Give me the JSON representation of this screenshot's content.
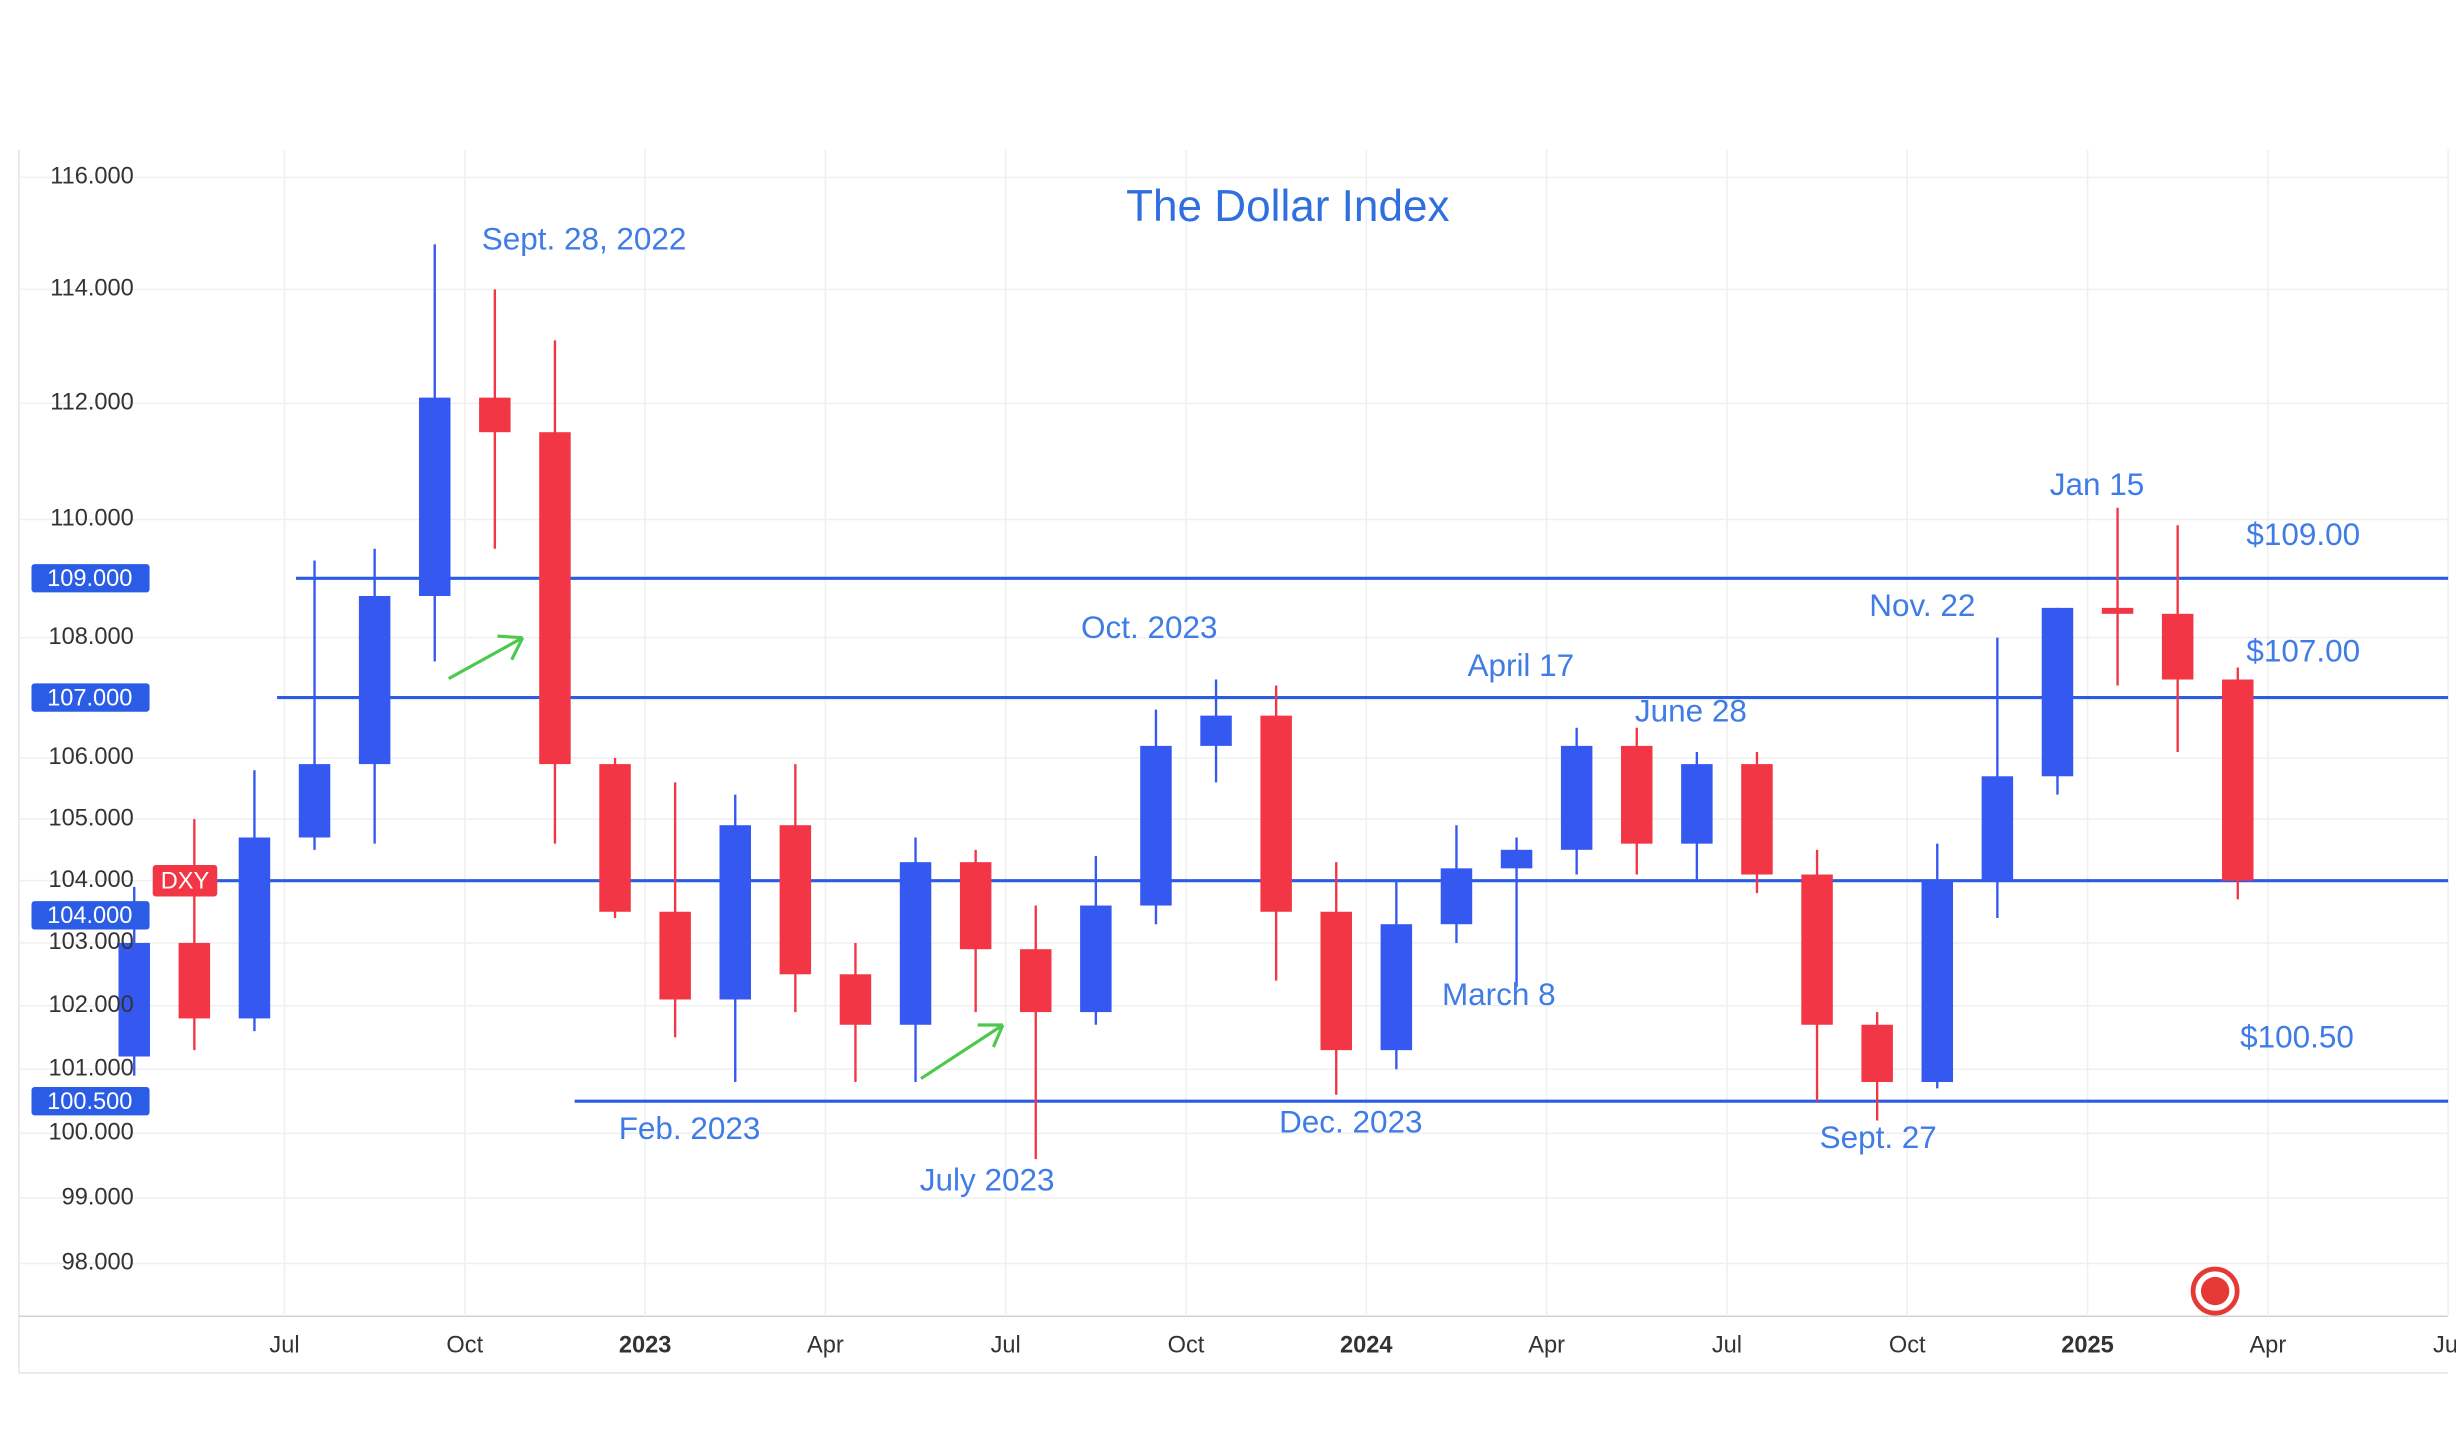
{
  "chart_data": {
    "type": "candlestick",
    "title": "The Dollar Index",
    "log_scale": true,
    "grid": true,
    "x": [
      "2022-04",
      "2022-05",
      "2022-06",
      "2022-07",
      "2022-08",
      "2022-09",
      "2022-10",
      "2022-11",
      "2022-12",
      "2023-01",
      "2023-02",
      "2023-03",
      "2023-04",
      "2023-05",
      "2023-06",
      "2023-07",
      "2023-08",
      "2023-09",
      "2023-10",
      "2023-11",
      "2023-12",
      "2024-01",
      "2024-02",
      "2024-03",
      "2024-04",
      "2024-05",
      "2024-06",
      "2024-07",
      "2024-08",
      "2024-09",
      "2024-10",
      "2024-11",
      "2024-12",
      "2025-01",
      "2025-02",
      "2025-03"
    ],
    "series": [
      {
        "name": "DXY",
        "up_color": "#3558f0",
        "down_color": "#f23645",
        "open": [
          101.2,
          103.0,
          101.8,
          104.7,
          105.9,
          108.7,
          112.1,
          111.5,
          105.9,
          103.5,
          102.1,
          104.9,
          102.5,
          101.7,
          104.3,
          102.9,
          101.9,
          103.6,
          106.2,
          106.7,
          103.5,
          101.3,
          103.3,
          104.2,
          104.5,
          106.2,
          104.6,
          105.9,
          104.1,
          101.7,
          100.8,
          104.0,
          105.7,
          108.5,
          108.4,
          107.3
        ],
        "high": [
          103.9,
          105.0,
          105.8,
          109.3,
          109.5,
          114.8,
          114.0,
          113.1,
          106.0,
          105.6,
          105.4,
          105.9,
          103.0,
          104.7,
          104.5,
          103.6,
          104.4,
          106.8,
          107.3,
          107.2,
          104.3,
          104.0,
          104.9,
          104.7,
          106.5,
          106.5,
          106.1,
          106.1,
          104.5,
          101.9,
          104.6,
          108.0,
          108.5,
          110.2,
          109.9,
          107.5
        ],
        "low": [
          100.9,
          101.3,
          101.6,
          104.5,
          104.6,
          107.6,
          109.5,
          104.6,
          103.4,
          101.5,
          100.8,
          101.9,
          100.8,
          100.8,
          101.9,
          99.6,
          101.7,
          103.3,
          105.6,
          102.4,
          100.6,
          101.0,
          103.0,
          102.3,
          104.1,
          104.1,
          104.0,
          103.8,
          100.5,
          100.2,
          100.7,
          103.4,
          105.4,
          107.2,
          106.1,
          103.7
        ],
        "close": [
          103.0,
          101.8,
          104.7,
          105.9,
          108.7,
          112.1,
          111.5,
          105.9,
          103.5,
          102.1,
          104.9,
          102.5,
          101.7,
          104.3,
          102.9,
          101.9,
          103.6,
          106.2,
          106.7,
          103.5,
          101.3,
          103.3,
          104.2,
          104.5,
          106.2,
          104.6,
          105.9,
          104.1,
          101.7,
          100.8,
          104.0,
          105.7,
          108.5,
          108.4,
          107.3,
          104.0
        ]
      }
    ],
    "xlim": [
      "2022-03",
      "2025-07"
    ],
    "xticks": [
      {
        "value": "2022-07",
        "label": "Jul"
      },
      {
        "value": "2022-10",
        "label": "Oct"
      },
      {
        "value": "2023-01",
        "label": "2023"
      },
      {
        "value": "2023-04",
        "label": "Apr"
      },
      {
        "value": "2023-07",
        "label": "Jul"
      },
      {
        "value": "2023-10",
        "label": "Oct"
      },
      {
        "value": "2024-01",
        "label": "2024"
      },
      {
        "value": "2024-04",
        "label": "Apr"
      },
      {
        "value": "2024-07",
        "label": "Jul"
      },
      {
        "value": "2024-10",
        "label": "Oct"
      },
      {
        "value": "2025-01",
        "label": "2025"
      },
      {
        "value": "2025-04",
        "label": "Apr"
      },
      {
        "value": "2025-07",
        "label": "Jul"
      }
    ],
    "ylim": [
      97.2,
      116.5
    ],
    "yticks": [
      {
        "value": 116,
        "label": "116.000"
      },
      {
        "value": 114,
        "label": "114.000"
      },
      {
        "value": 112,
        "label": "112.000"
      },
      {
        "value": 110,
        "label": "110.000"
      },
      {
        "value": 108,
        "label": "108.000"
      },
      {
        "value": 106,
        "label": "106.000"
      },
      {
        "value": 105,
        "label": "105.000"
      },
      {
        "value": 104,
        "label": "104.000"
      },
      {
        "value": 103,
        "label": "103.000"
      },
      {
        "value": 102,
        "label": "102.000"
      },
      {
        "value": 101,
        "label": "101.000"
      },
      {
        "value": 100,
        "label": "100.000"
      },
      {
        "value": 99,
        "label": "99.000"
      },
      {
        "value": 98,
        "label": "98.000"
      }
    ],
    "levels": [
      {
        "value": 109,
        "label": "109.000"
      },
      {
        "value": 107,
        "label": "107.000"
      },
      {
        "value": 104,
        "label": "104.000"
      },
      {
        "value": 100.5,
        "label": "100.500"
      }
    ],
    "level_color": "#2b5ce6",
    "annotations": [
      "Sept. 28, 2022",
      "Oct. 2023",
      "April 17",
      "June 28",
      "Nov. 22",
      "Jan 15",
      "$109.00",
      "$107.00",
      "$100.50",
      "March 8",
      "Feb. 2023",
      "July 2023",
      "Dec. 2023",
      "Sept. 27"
    ]
  }
}
